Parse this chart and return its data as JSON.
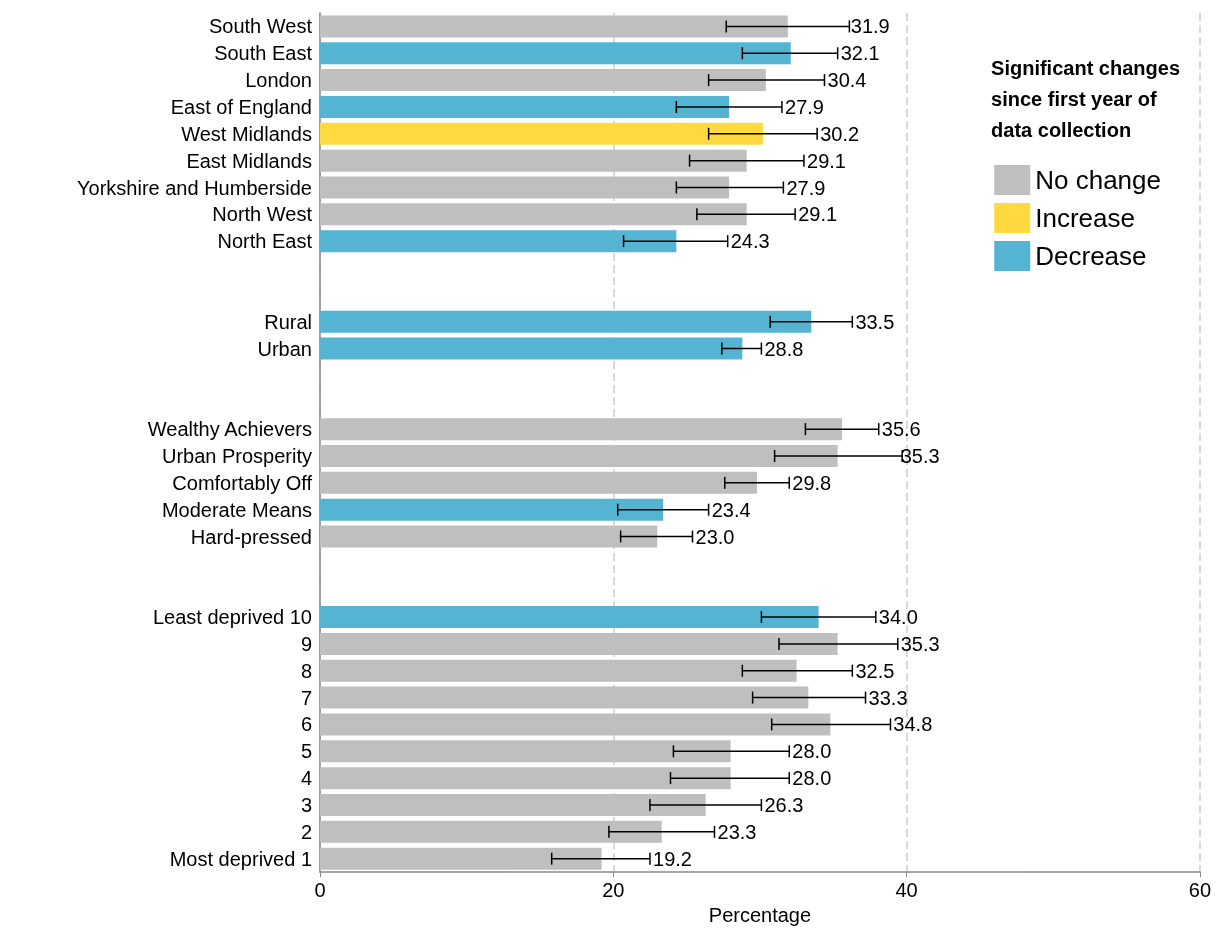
{
  "chart_data": {
    "type": "bar",
    "orientation": "horizontal",
    "stacked": true,
    "categories": [
      "South West",
      "South East",
      "London",
      "East of England",
      "West Midlands",
      "East Midlands",
      "Yorkshire and Humberside",
      "North West",
      "North East",
      null,
      null,
      "Rural",
      "Urban",
      null,
      null,
      "Wealthy Achievers",
      "Urban Prosperity",
      "Comfortably Off",
      "Moderate Means",
      "Hard-pressed",
      null,
      null,
      "Least deprived 10",
      "9",
      "8",
      "7",
      "6",
      "5",
      "4",
      "3",
      "2",
      "Most deprived 1"
    ],
    "series": [
      {
        "name": "No change",
        "color": "#bfbfbf",
        "values": [
          31.9,
          null,
          30.4,
          null,
          null,
          29.1,
          27.9,
          29.1,
          null,
          null,
          null,
          null,
          null,
          null,
          null,
          35.6,
          35.3,
          29.8,
          null,
          23.0,
          null,
          null,
          null,
          35.3,
          32.5,
          33.3,
          34.8,
          28.0,
          28.0,
          26.3,
          23.3,
          19.2
        ],
        "errors": [
          [
            27.7,
            36.1
          ],
          null,
          [
            26.5,
            34.4
          ],
          null,
          null,
          [
            25.2,
            33.0
          ],
          [
            24.3,
            31.6
          ],
          [
            25.7,
            32.4
          ],
          null,
          null,
          null,
          null,
          null,
          null,
          null,
          [
            33.1,
            38.1
          ],
          [
            31.0,
            39.7
          ],
          [
            27.6,
            32.0
          ],
          null,
          [
            20.5,
            25.4
          ],
          null,
          null,
          null,
          [
            31.3,
            39.4
          ],
          [
            28.8,
            36.3
          ],
          [
            29.5,
            37.2
          ],
          [
            30.8,
            38.9
          ],
          [
            24.1,
            32.0
          ],
          [
            23.9,
            32.0
          ],
          [
            22.5,
            30.1
          ],
          [
            19.7,
            26.9
          ],
          [
            15.8,
            22.5
          ]
        ],
        "value_labels": [
          "31.9",
          null,
          "30.4",
          null,
          null,
          "29.1",
          "27.9",
          "29.1",
          null,
          null,
          null,
          null,
          null,
          null,
          null,
          "35.6",
          "35.3",
          "29.8",
          null,
          "23.0",
          null,
          null,
          null,
          "35.3",
          "32.5",
          "33.3",
          "34.8",
          "28.0",
          "28.0",
          "26.3",
          "23.3",
          "19.2"
        ]
      },
      {
        "name": "Increase",
        "color": "#ffd93f",
        "values": [
          null,
          null,
          null,
          null,
          30.2,
          null,
          null,
          null,
          null,
          null,
          null,
          null,
          null,
          null,
          null,
          null,
          null,
          null,
          null,
          null,
          null,
          null,
          null,
          null,
          null,
          null,
          null,
          null,
          null,
          null,
          null,
          null
        ],
        "errors": [
          null,
          null,
          null,
          null,
          [
            26.5,
            33.9
          ],
          null,
          null,
          null,
          null,
          null,
          null,
          null,
          null,
          null,
          null,
          null,
          null,
          null,
          null,
          null,
          null,
          null,
          null,
          null,
          null,
          null,
          null,
          null,
          null,
          null,
          null,
          null
        ],
        "value_labels": [
          null,
          null,
          null,
          null,
          "30.2",
          null,
          null,
          null,
          null,
          null,
          null,
          null,
          null,
          null,
          null,
          null,
          null,
          null,
          null,
          null,
          null,
          null,
          null,
          null,
          null,
          null,
          null,
          null,
          null,
          null,
          null,
          null
        ]
      },
      {
        "name": "Decrease",
        "color": "#56b4d3",
        "values": [
          null,
          32.1,
          null,
          27.9,
          null,
          null,
          null,
          null,
          24.3,
          null,
          null,
          33.5,
          28.8,
          null,
          null,
          null,
          null,
          null,
          23.4,
          null,
          null,
          null,
          34.0,
          null,
          null,
          null,
          null,
          null,
          null,
          null,
          null,
          null
        ],
        "errors": [
          null,
          [
            28.8,
            35.3
          ],
          null,
          [
            24.3,
            31.5
          ],
          null,
          null,
          null,
          null,
          [
            20.7,
            27.8
          ],
          null,
          null,
          [
            30.7,
            36.3
          ],
          [
            27.4,
            30.1
          ],
          null,
          null,
          null,
          null,
          null,
          [
            20.3,
            26.5
          ],
          null,
          null,
          null,
          [
            30.1,
            37.9
          ],
          null,
          null,
          null,
          null,
          null,
          null,
          null,
          null,
          null
        ],
        "value_labels": [
          null,
          "32.1",
          null,
          "27.9",
          null,
          null,
          null,
          null,
          "24.3",
          null,
          null,
          "33.5",
          "28.8",
          null,
          null,
          null,
          null,
          null,
          "23.4",
          null,
          null,
          null,
          "34.0",
          null,
          null,
          null,
          null,
          null,
          null,
          null,
          null,
          null
        ]
      }
    ],
    "xlim": [
      0,
      60
    ],
    "xticks": [
      0,
      20,
      40,
      60
    ],
    "xlabel": "Percentage",
    "grid": "x",
    "legend": "top right",
    "legend_title": "Significant changes\nsince first year of\ndata collection"
  }
}
